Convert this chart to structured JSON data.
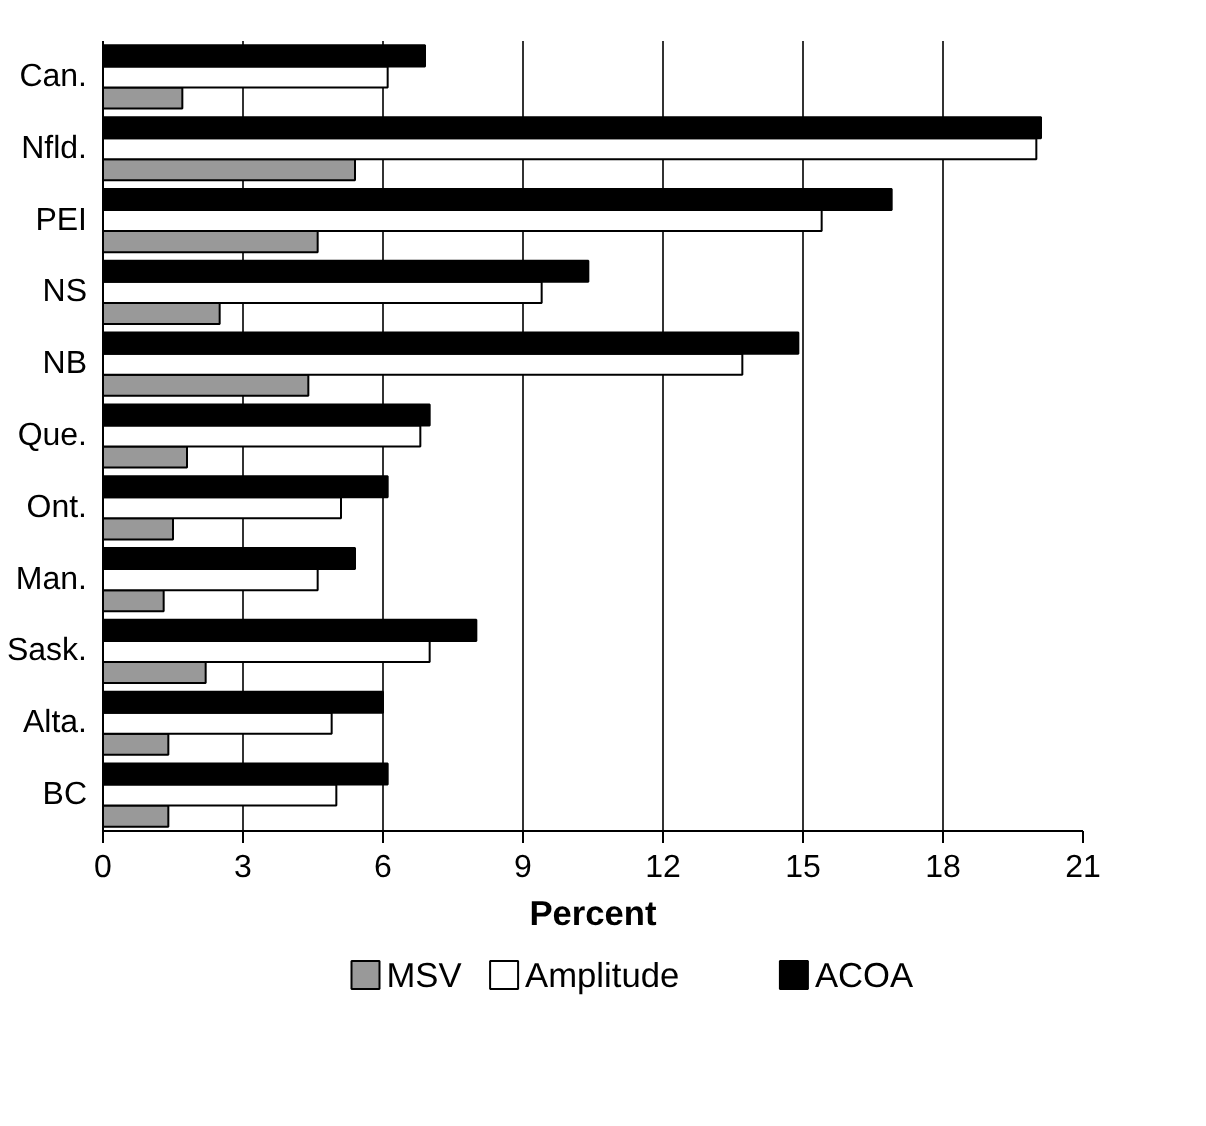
{
  "chart_data": {
    "type": "bar",
    "orientation": "horizontal",
    "xlabel": "Percent",
    "categories": [
      "Can.",
      "Nfld.",
      "PEI",
      "NS",
      "NB",
      "Que.",
      "Ont.",
      "Man.",
      "Sask.",
      "Alta.",
      "BC"
    ],
    "series": [
      {
        "name": "MSV",
        "color": "#999999",
        "values": [
          1.7,
          5.4,
          4.6,
          2.5,
          4.4,
          1.8,
          1.5,
          1.3,
          2.2,
          1.4,
          1.4
        ]
      },
      {
        "name": "Amplitude",
        "color": "#ffffff",
        "values": [
          6.1,
          20.0,
          15.4,
          9.4,
          13.7,
          6.8,
          5.1,
          4.6,
          7.0,
          4.9,
          5.0
        ]
      },
      {
        "name": "ACOA",
        "color": "#000000",
        "values": [
          6.9,
          20.1,
          16.9,
          10.4,
          14.9,
          7.0,
          6.1,
          5.4,
          8.0,
          6.0,
          6.1
        ]
      }
    ],
    "xlim": [
      0,
      21
    ],
    "xticks": [
      0,
      3,
      6,
      9,
      12,
      15,
      18,
      21
    ],
    "grid": "x",
    "legend": "bottom"
  }
}
